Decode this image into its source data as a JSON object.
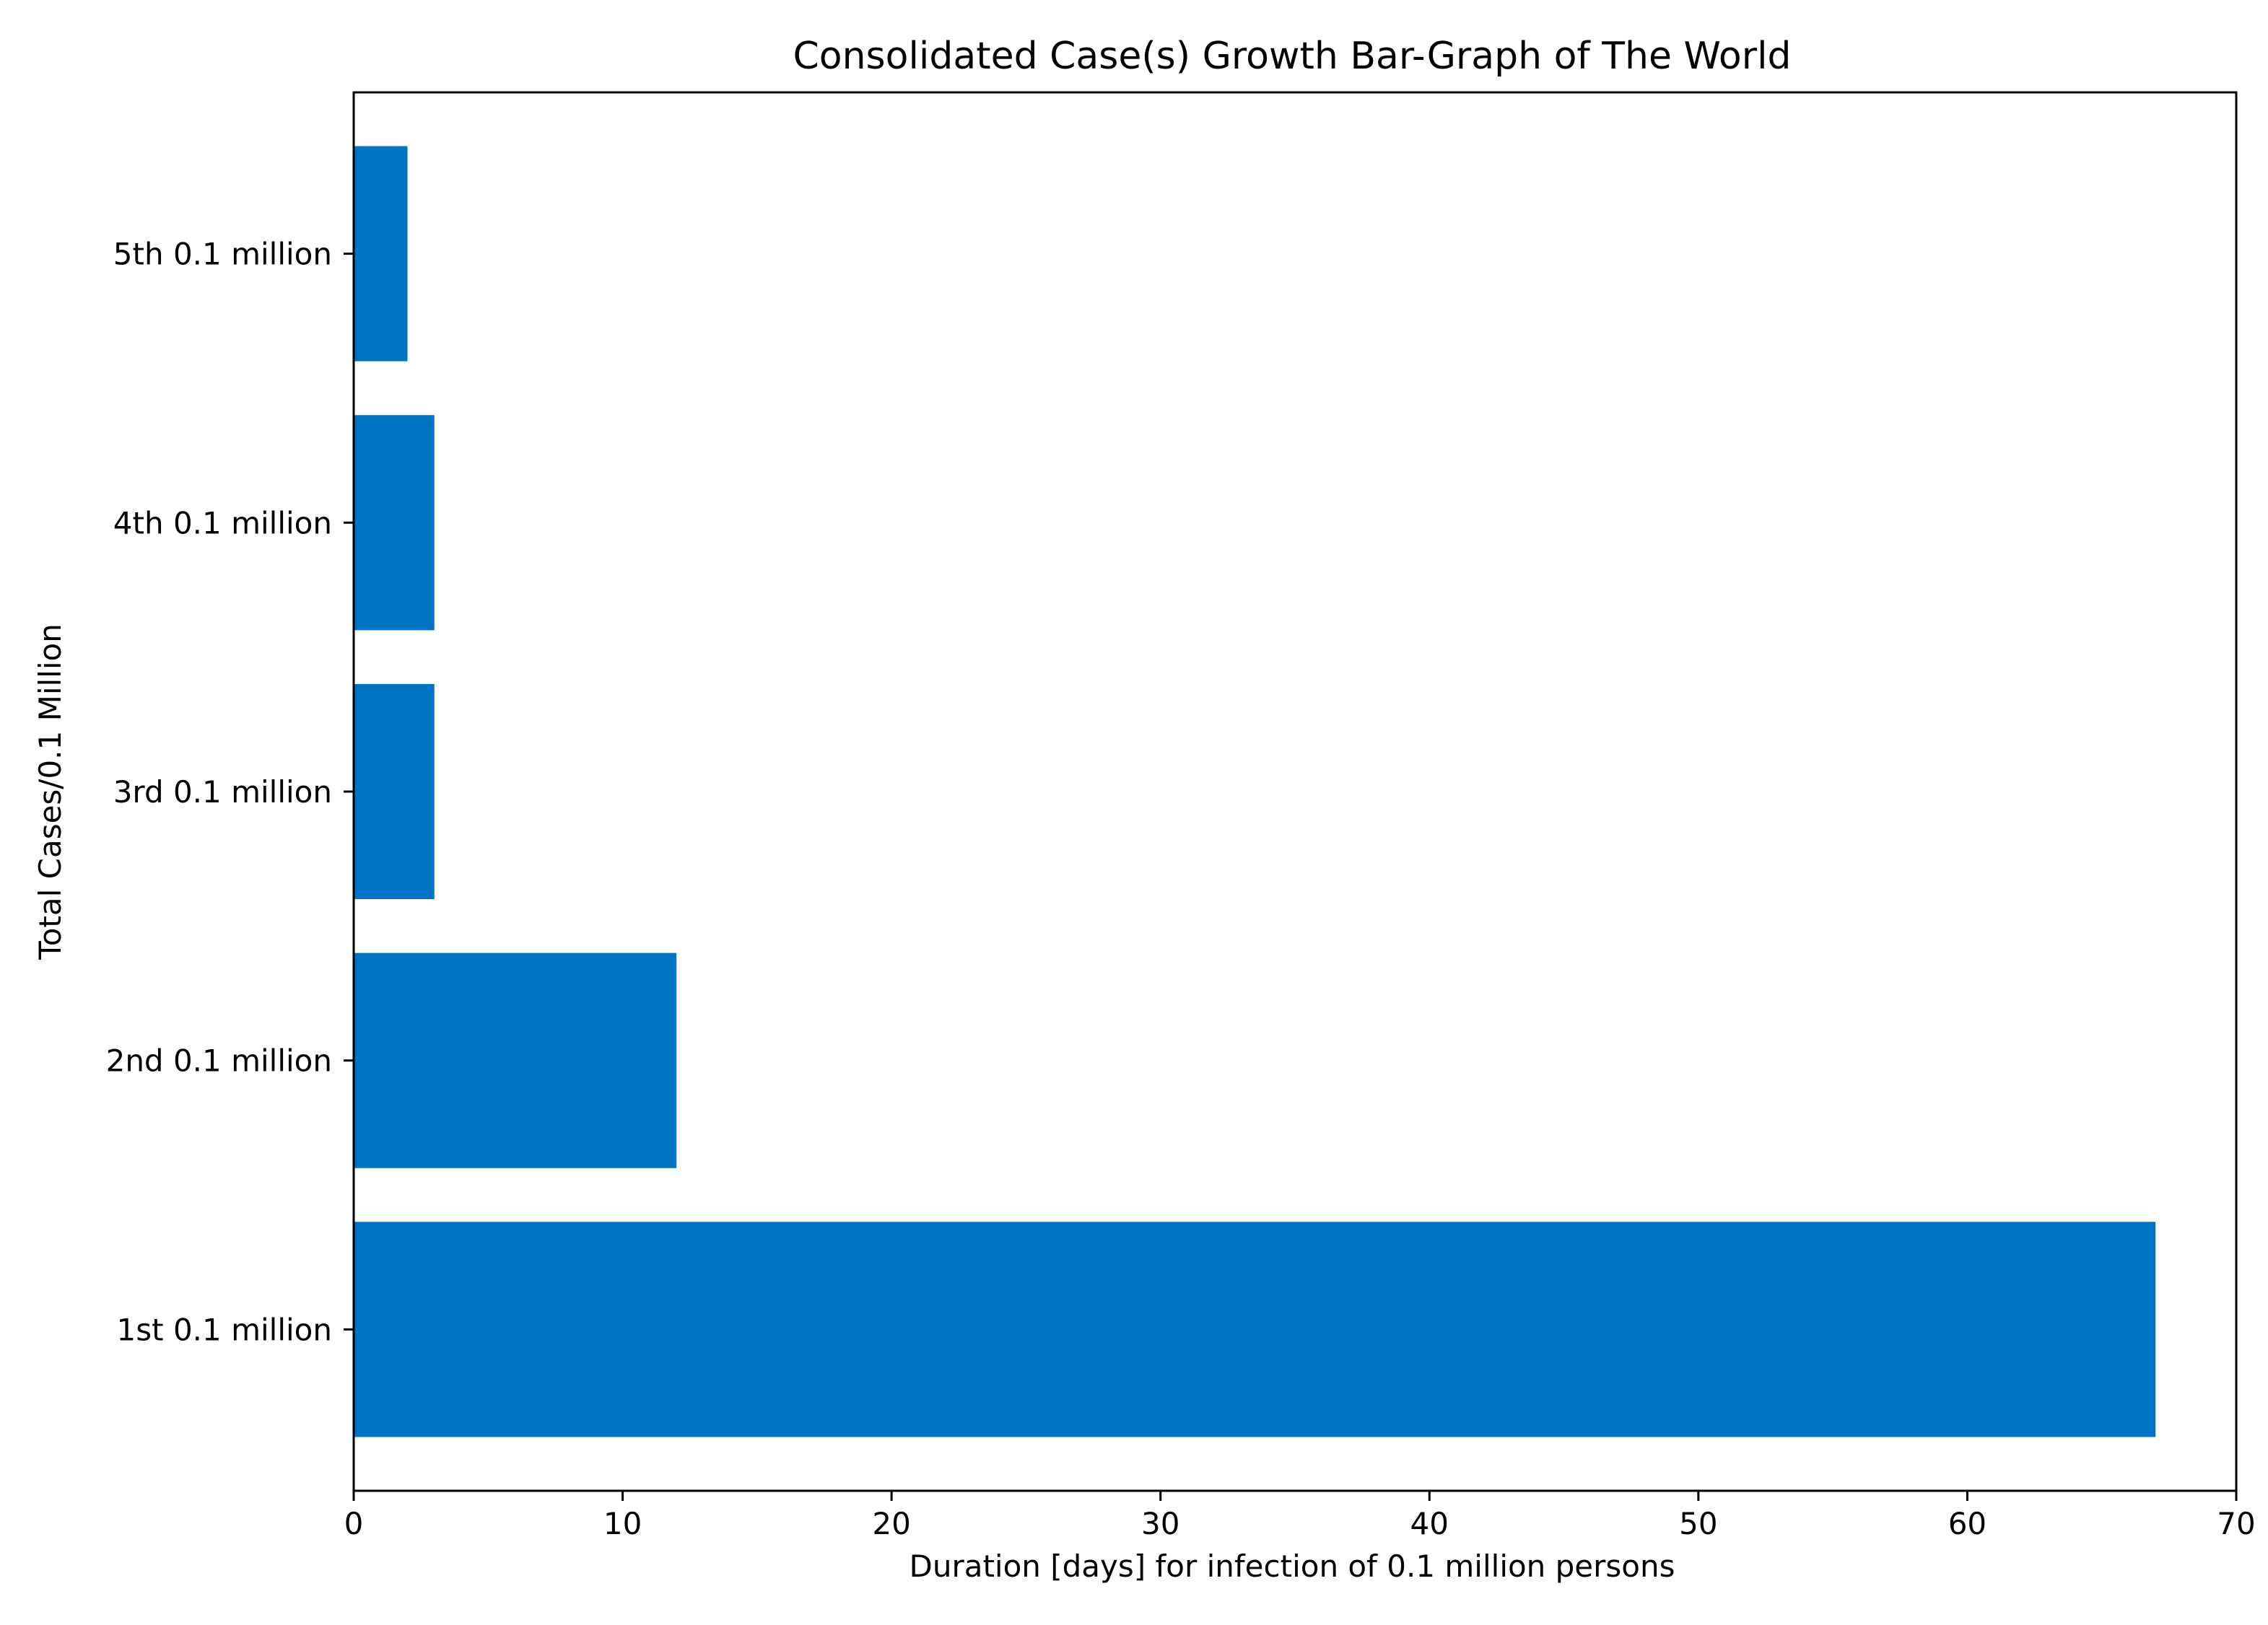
{
  "chart_data": {
    "type": "bar",
    "orientation": "horizontal",
    "title": "Consolidated Case(s) Growth Bar-Graph of The World",
    "xlabel": "Duration [days] for infection of 0.1 million persons",
    "ylabel": "Total Cases/0.1 Million",
    "categories": [
      "1st 0.1 million",
      "2nd 0.1 million",
      "3rd 0.1 million",
      "4th 0.1 million",
      "5th 0.1 million"
    ],
    "values": [
      67,
      12,
      3,
      3,
      2
    ],
    "xlim": [
      0,
      70
    ],
    "xticks": [
      0,
      10,
      20,
      30,
      40,
      50,
      60,
      70
    ],
    "bar_color": "#0073c6",
    "grid": false,
    "legend": "none"
  }
}
